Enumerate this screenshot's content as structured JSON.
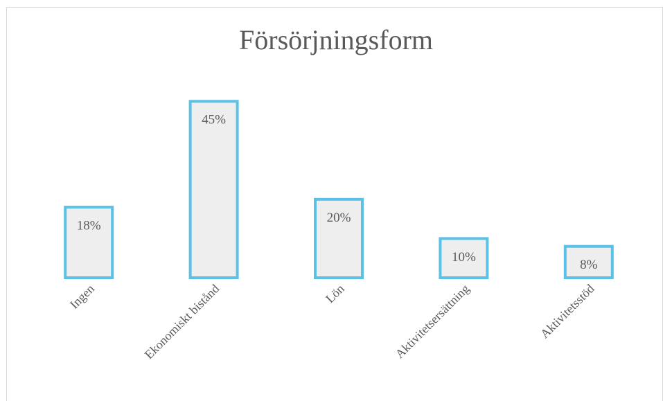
{
  "chart_data": {
    "type": "bar",
    "title": "Försörjningsform",
    "categories": [
      "Ingen",
      "Ekonomiskt bistånd",
      "Lön",
      "Aktivitetsersättning",
      "Aktivitetsstöd"
    ],
    "values": [
      18,
      45,
      20,
      10,
      8
    ],
    "value_labels": [
      "18%",
      "45%",
      "20%",
      "10%",
      "8%"
    ],
    "color": "#eeeeee",
    "edgecolor": "#5bc1e6",
    "ylim": [
      0,
      50
    ],
    "grid": false
  }
}
